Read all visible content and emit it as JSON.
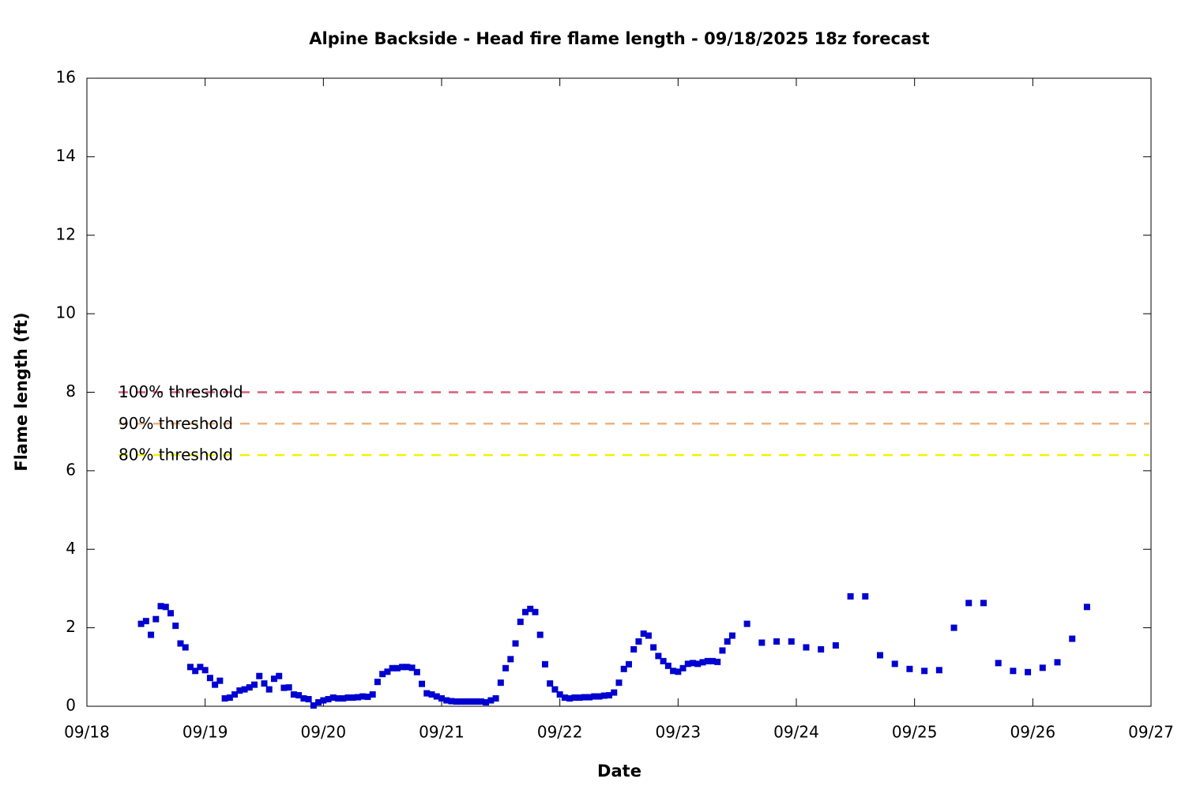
{
  "chart_data": {
    "type": "scatter",
    "title": "Alpine Backside - Head fire flame length - 09/18/2025 18z forecast",
    "x_label": "Date",
    "y_label": "Flame length (ft)",
    "xlim": [
      0,
      216
    ],
    "xticks": [
      {
        "value": 0,
        "label": "09/18"
      },
      {
        "value": 24,
        "label": "09/19"
      },
      {
        "value": 48,
        "label": "09/20"
      },
      {
        "value": 72,
        "label": "09/21"
      },
      {
        "value": 96,
        "label": "09/22"
      },
      {
        "value": 120,
        "label": "09/23"
      },
      {
        "value": 144,
        "label": "09/24"
      },
      {
        "value": 168,
        "label": "09/25"
      },
      {
        "value": 192,
        "label": "09/26"
      },
      {
        "value": 216,
        "label": "09/27"
      }
    ],
    "ylim": [
      0,
      16
    ],
    "yticks": [
      0,
      2,
      4,
      6,
      8,
      10,
      12,
      14,
      16
    ],
    "grid": false,
    "color": "#0000d0",
    "x": [
      11,
      12,
      13,
      14,
      15,
      16,
      17,
      18,
      19,
      20,
      21,
      22,
      23,
      24,
      25,
      26,
      27,
      28,
      29,
      30,
      31,
      32,
      33,
      34,
      35,
      36,
      37,
      38,
      39,
      40,
      41,
      42,
      43,
      44,
      45,
      46,
      47,
      48,
      49,
      50,
      51,
      52,
      53,
      54,
      55,
      56,
      57,
      58,
      59,
      60,
      61,
      62,
      63,
      64,
      65,
      66,
      67,
      68,
      69,
      70,
      71,
      72,
      73,
      74,
      75,
      76,
      77,
      78,
      79,
      80,
      81,
      82,
      83,
      84,
      85,
      86,
      87,
      88,
      89,
      90,
      91,
      92,
      93,
      94,
      95,
      96,
      97,
      98,
      99,
      100,
      101,
      102,
      103,
      104,
      105,
      106,
      107,
      108,
      109,
      110,
      111,
      112,
      113,
      114,
      115,
      116,
      117,
      118,
      119,
      120,
      121,
      122,
      123,
      124,
      125,
      126,
      127,
      128,
      129,
      130,
      131,
      134,
      137,
      140,
      143,
      146,
      149,
      152,
      155,
      158,
      161,
      164,
      167,
      170,
      173,
      176,
      179,
      182,
      185,
      188,
      191,
      194,
      197,
      200,
      203
    ],
    "values": [
      2.1,
      2.17,
      1.82,
      2.22,
      2.55,
      2.53,
      2.37,
      2.05,
      1.6,
      1.5,
      1.0,
      0.9,
      1.0,
      0.92,
      0.72,
      0.55,
      0.65,
      0.2,
      0.22,
      0.3,
      0.4,
      0.43,
      0.48,
      0.55,
      0.77,
      0.58,
      0.43,
      0.7,
      0.77,
      0.47,
      0.48,
      0.3,
      0.28,
      0.2,
      0.18,
      0.02,
      0.1,
      0.15,
      0.18,
      0.22,
      0.2,
      0.2,
      0.22,
      0.22,
      0.23,
      0.25,
      0.24,
      0.3,
      0.62,
      0.82,
      0.88,
      0.97,
      0.97,
      1.0,
      1.0,
      0.98,
      0.87,
      0.57,
      0.33,
      0.3,
      0.25,
      0.2,
      0.15,
      0.13,
      0.12,
      0.12,
      0.12,
      0.12,
      0.12,
      0.12,
      0.1,
      0.15,
      0.2,
      0.6,
      0.97,
      1.2,
      1.6,
      2.15,
      2.4,
      2.48,
      2.4,
      1.82,
      1.07,
      0.58,
      0.43,
      0.3,
      0.22,
      0.2,
      0.22,
      0.22,
      0.23,
      0.23,
      0.25,
      0.25,
      0.27,
      0.28,
      0.35,
      0.6,
      0.95,
      1.07,
      1.45,
      1.65,
      1.85,
      1.8,
      1.5,
      1.28,
      1.15,
      1.03,
      0.9,
      0.88,
      0.97,
      1.08,
      1.1,
      1.08,
      1.12,
      1.15,
      1.15,
      1.13,
      1.42,
      1.65,
      1.8,
      2.1,
      1.62,
      1.65,
      1.65,
      1.5,
      1.45,
      1.55,
      2.8,
      2.8,
      1.3,
      1.08,
      0.95,
      0.9,
      0.92,
      2.0,
      2.63,
      2.63,
      1.1,
      0.9,
      0.87,
      0.98,
      1.12,
      1.72,
      2.53
    ],
    "thresholds": [
      {
        "name": "100% threshold",
        "value": 8,
        "color": "#d65f7c"
      },
      {
        "name": "90% threshold",
        "value": 7.2,
        "color": "#f2b27a"
      },
      {
        "name": "80% threshold",
        "value": 6.4,
        "color": "#f2f200"
      }
    ]
  }
}
